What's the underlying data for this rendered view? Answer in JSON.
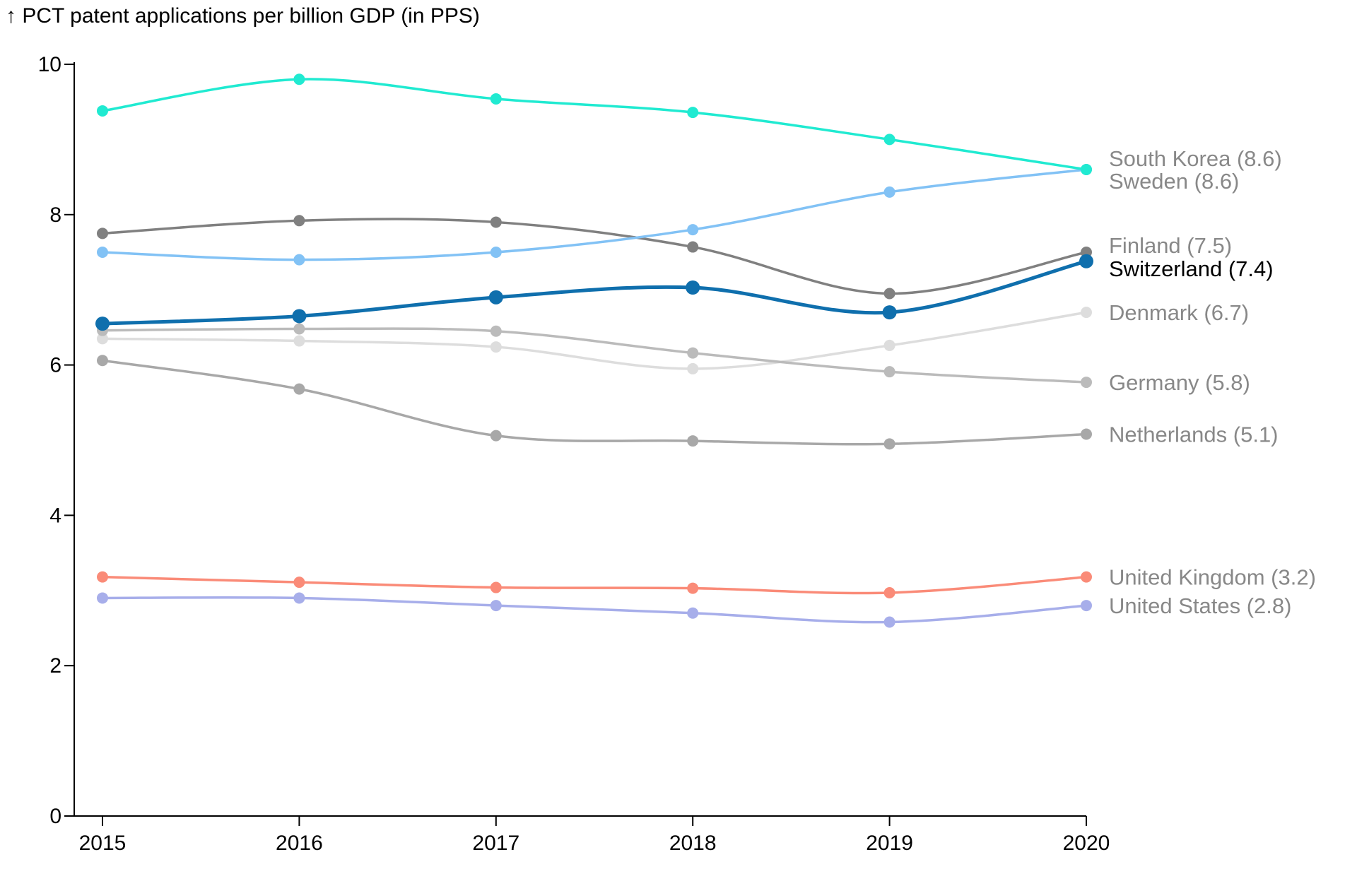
{
  "chart_data": {
    "type": "line",
    "ylabel": "↑ PCT patent applications per billion GDP (in PPS)",
    "x": [
      2015,
      2016,
      2017,
      2018,
      2019,
      2020
    ],
    "x_tick_labels": [
      "2015",
      "2016",
      "2017",
      "2018",
      "2019",
      "2020"
    ],
    "ylim": [
      0,
      10
    ],
    "y_ticks": [
      0,
      2,
      4,
      6,
      8,
      10
    ],
    "y_tick_labels": [
      "0",
      "2",
      "4",
      "6",
      "8",
      "10"
    ],
    "grid": false,
    "curve": "smooth",
    "series": [
      {
        "name": "Denmark",
        "label": "Denmark (6.7)",
        "color": "#dddddd",
        "label_color": "#888888",
        "values": [
          6.35,
          6.32,
          6.24,
          5.95,
          6.26,
          6.7
        ]
      },
      {
        "name": "Germany",
        "label": "Germany (5.8)",
        "color": "#bbbbbb",
        "label_color": "#888888",
        "values": [
          6.46,
          6.48,
          6.45,
          6.16,
          5.91,
          5.77
        ]
      },
      {
        "name": "Netherlands",
        "label": "Netherlands (5.1)",
        "color": "#a8a8a8",
        "label_color": "#888888",
        "values": [
          6.06,
          5.68,
          5.06,
          4.99,
          4.95,
          5.08
        ]
      },
      {
        "name": "Finland",
        "label": "Finland (7.5)",
        "color": "#808080",
        "label_color": "#888888",
        "values": [
          7.75,
          7.92,
          7.9,
          7.57,
          6.95,
          7.5
        ]
      },
      {
        "name": "United Kingdom",
        "label": "United Kingdom (3.2)",
        "color": "#fa8b78",
        "label_color": "#888888",
        "values": [
          3.18,
          3.11,
          3.04,
          3.03,
          2.97,
          3.18
        ]
      },
      {
        "name": "United States",
        "label": "United States (2.8)",
        "color": "#a7aeea",
        "label_color": "#888888",
        "values": [
          2.9,
          2.9,
          2.8,
          2.7,
          2.58,
          2.8
        ]
      },
      {
        "name": "Sweden",
        "label": "Sweden (8.6)",
        "color": "#82c2f5",
        "label_color": "#888888",
        "values": [
          7.5,
          7.4,
          7.5,
          7.8,
          8.3,
          8.6
        ]
      },
      {
        "name": "South Korea",
        "label": "South Korea (8.6)",
        "color": "#20ead1",
        "label_color": "#888888",
        "values": [
          9.38,
          9.8,
          9.54,
          9.36,
          9.0,
          8.6
        ]
      },
      {
        "name": "Switzerland",
        "label": "Switzerland (7.4)",
        "color": "#0f6fad",
        "label_color": "#000000",
        "highlight": true,
        "values": [
          6.55,
          6.65,
          6.9,
          7.03,
          6.7,
          7.38
        ]
      }
    ]
  }
}
